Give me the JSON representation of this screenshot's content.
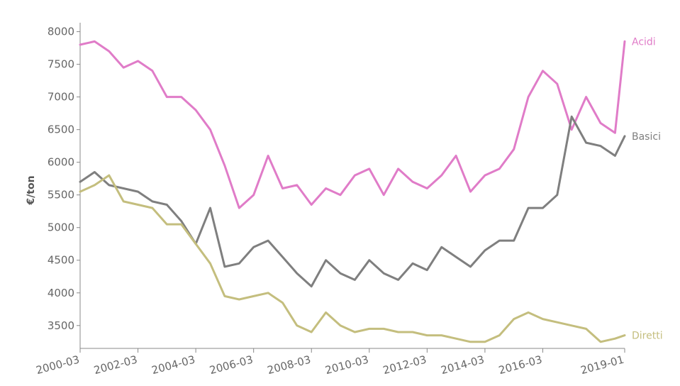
{
  "chart_data": {
    "type": "line",
    "title": "",
    "xlabel": "",
    "ylabel": "€/ton",
    "ylim": [
      3150,
      8050
    ],
    "y_ticks": [
      3500,
      4000,
      4500,
      5000,
      5500,
      6000,
      6500,
      7000,
      7500,
      8000
    ],
    "x_range": [
      "2000-03",
      "2019-01"
    ],
    "x_tick_labels": [
      "2000-03",
      "2002-03",
      "2004-03",
      "2006-03",
      "2008-03",
      "2010-03",
      "2012-03",
      "2014-03",
      "2016-03",
      "2019-01"
    ],
    "grid": false,
    "legend": "labels at line ends (right)",
    "series": [
      {
        "name": "Acidi",
        "color": "#e07cc8",
        "x": [
          "2000-03",
          "2000-09",
          "2001-03",
          "2001-09",
          "2002-03",
          "2002-09",
          "2003-03",
          "2003-09",
          "2004-03",
          "2004-09",
          "2005-03",
          "2005-09",
          "2006-03",
          "2006-09",
          "2007-03",
          "2007-09",
          "2008-03",
          "2008-09",
          "2009-03",
          "2009-09",
          "2010-03",
          "2010-09",
          "2011-03",
          "2011-09",
          "2012-03",
          "2012-09",
          "2013-03",
          "2013-09",
          "2014-03",
          "2014-09",
          "2015-03",
          "2015-09",
          "2016-03",
          "2016-09",
          "2017-03",
          "2017-09",
          "2018-03",
          "2018-09",
          "2019-01"
        ],
        "values": [
          7800,
          7850,
          7700,
          7450,
          7550,
          7400,
          7000,
          7000,
          6800,
          6500,
          5950,
          5300,
          5500,
          6100,
          5600,
          5650,
          5350,
          5600,
          5500,
          5800,
          5900,
          5500,
          5900,
          5700,
          5600,
          5800,
          6100,
          5550,
          5800,
          5900,
          6200,
          7000,
          7400,
          7200,
          6500,
          7000,
          6600,
          6450,
          7850
        ]
      },
      {
        "name": "Basici",
        "color": "#7f7f7f",
        "x": [
          "2000-03",
          "2000-09",
          "2001-03",
          "2001-09",
          "2002-03",
          "2002-09",
          "2003-03",
          "2003-09",
          "2004-03",
          "2004-09",
          "2005-03",
          "2005-09",
          "2006-03",
          "2006-09",
          "2007-03",
          "2007-09",
          "2008-03",
          "2008-09",
          "2009-03",
          "2009-09",
          "2010-03",
          "2010-09",
          "2011-03",
          "2011-09",
          "2012-03",
          "2012-09",
          "2013-03",
          "2013-09",
          "2014-03",
          "2014-09",
          "2015-03",
          "2015-09",
          "2016-03",
          "2016-09",
          "2017-03",
          "2017-09",
          "2018-03",
          "2018-09",
          "2019-01"
        ],
        "values": [
          5700,
          5850,
          5650,
          5600,
          5550,
          5400,
          5350,
          5100,
          4750,
          5300,
          4400,
          4450,
          4700,
          4800,
          4550,
          4300,
          4100,
          4500,
          4300,
          4200,
          4500,
          4300,
          4200,
          4450,
          4350,
          4700,
          4550,
          4400,
          4650,
          4800,
          4800,
          5300,
          5300,
          5500,
          6700,
          6300,
          6250,
          6100,
          6400
        ]
      },
      {
        "name": "Diretti",
        "color": "#c4be7e",
        "x": [
          "2000-03",
          "2000-09",
          "2001-03",
          "2001-09",
          "2002-03",
          "2002-09",
          "2003-03",
          "2003-09",
          "2004-03",
          "2004-09",
          "2005-03",
          "2005-09",
          "2006-03",
          "2006-09",
          "2007-03",
          "2007-09",
          "2008-03",
          "2008-09",
          "2009-03",
          "2009-09",
          "2010-03",
          "2010-09",
          "2011-03",
          "2011-09",
          "2012-03",
          "2012-09",
          "2013-03",
          "2013-09",
          "2014-03",
          "2014-09",
          "2015-03",
          "2015-09",
          "2016-03",
          "2016-09",
          "2017-03",
          "2017-09",
          "2018-03",
          "2018-09",
          "2019-01"
        ],
        "values": [
          5550,
          5650,
          5800,
          5400,
          5350,
          5300,
          5050,
          5050,
          4750,
          4450,
          3950,
          3900,
          3950,
          4000,
          3850,
          3500,
          3400,
          3700,
          3500,
          3400,
          3450,
          3450,
          3400,
          3400,
          3350,
          3350,
          3300,
          3250,
          3250,
          3350,
          3600,
          3700,
          3600,
          3550,
          3500,
          3450,
          3250,
          3300,
          3350
        ]
      }
    ]
  }
}
